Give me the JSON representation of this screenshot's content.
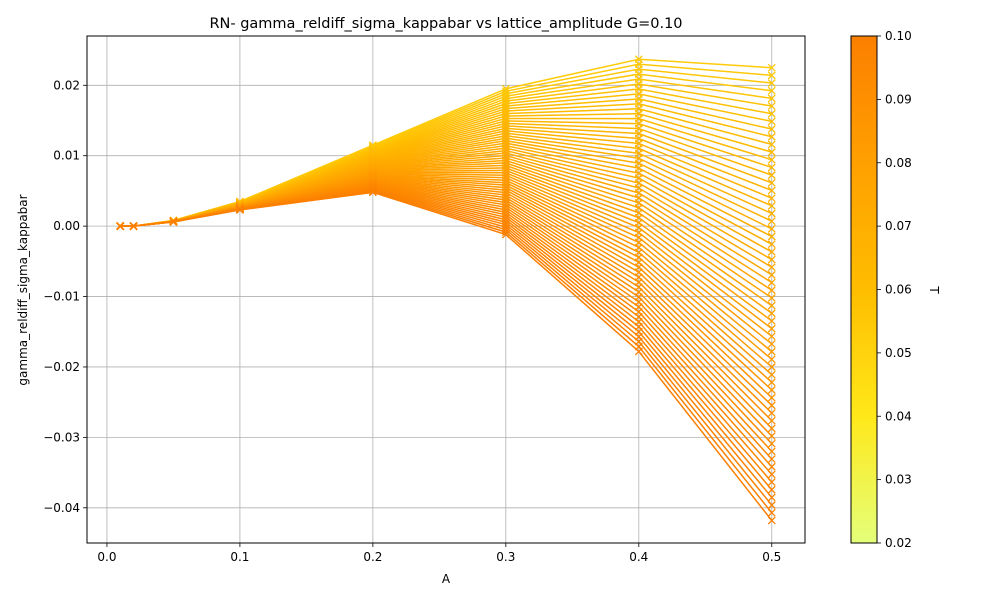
{
  "chart_data": {
    "type": "line",
    "title": "RN- gamma_reldiff_sigma_kappabar vs lattice_amplitude G=0.10",
    "xlabel": "A",
    "ylabel": "gamma_reldiff_sigma_kappabar",
    "x": [
      0.01,
      0.02,
      0.05,
      0.1,
      0.2,
      0.3,
      0.4,
      0.5
    ],
    "xlim": [
      -0.015,
      0.525
    ],
    "ylim": [
      -0.045,
      0.027
    ],
    "xticks": [
      "0.0",
      "0.1",
      "0.2",
      "0.3",
      "0.4",
      "0.5"
    ],
    "xtick_values": [
      0.0,
      0.1,
      0.2,
      0.3,
      0.4,
      0.5
    ],
    "yticks": [
      "−0.04",
      "−0.03",
      "−0.02",
      "−0.01",
      "0.00",
      "0.01",
      "0.02"
    ],
    "ytick_values": [
      -0.04,
      -0.03,
      -0.02,
      -0.01,
      0.0,
      0.01,
      0.02
    ],
    "grid": true,
    "marker": "x",
    "series_family": {
      "parameter": "T",
      "t_min": 0.02,
      "t_max": 0.1,
      "count": 60,
      "envelope_low_T": [
        0.0,
        0.0,
        0.0008,
        0.0035,
        0.0115,
        0.0195,
        0.0237,
        0.0225
      ],
      "envelope_high_T": [
        0.0,
        0.0,
        0.0006,
        0.0023,
        0.0048,
        -0.0012,
        -0.0178,
        -0.0418
      ]
    },
    "colorbar": {
      "label": "T",
      "min": 0.02,
      "max": 0.1,
      "ticks": [
        "0.02",
        "0.03",
        "0.04",
        "0.05",
        "0.06",
        "0.07",
        "0.08",
        "0.09",
        "0.10"
      ],
      "tick_values": [
        0.02,
        0.03,
        0.04,
        0.05,
        0.06,
        0.07,
        0.08,
        0.09,
        0.1
      ],
      "colormap": "Wistia",
      "colors": [
        "#e4ff7a",
        "#ffe81a",
        "#ffbd00",
        "#ffa000",
        "#fc7f00"
      ]
    }
  }
}
